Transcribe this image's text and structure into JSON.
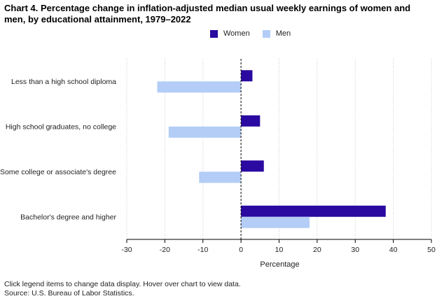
{
  "chart_data": {
    "type": "bar",
    "orientation": "horizontal",
    "title": "Chart 4. Percentage change in inflation-adjusted median usual weekly earnings of women and men, by educational attainment, 1979–2022",
    "categories": [
      "Less than a high school diploma",
      "High school graduates, no college",
      "Some college or associate's degree",
      "Bachelor's degree and higher"
    ],
    "series": [
      {
        "name": "Women",
        "color": "#2a0aa0",
        "values": [
          3,
          5,
          6,
          38
        ]
      },
      {
        "name": "Men",
        "color": "#b3cdf7",
        "values": [
          -22,
          -19,
          -11,
          18
        ]
      }
    ],
    "xlabel": "Percentage",
    "xlim": [
      -30,
      50
    ],
    "xticks": [
      -30,
      -20,
      -10,
      0,
      10,
      20,
      30,
      40,
      50
    ],
    "grid": "vertical-dotted",
    "legend": "top-center"
  },
  "title": "Chart 4. Percentage change in inflation-adjusted median usual weekly earnings of women and men, by educational attainment, 1979–2022",
  "legend": {
    "women": "Women",
    "men": "Men"
  },
  "colors": {
    "women": "#2a0aa0",
    "men": "#b3cdf7",
    "grid": "#c8c8c8",
    "axis": "#000000"
  },
  "footer": {
    "note": "Click legend items to change data display. Hover over chart to view data.",
    "source": "Source: U.S. Bureau of Labor Statistics."
  }
}
